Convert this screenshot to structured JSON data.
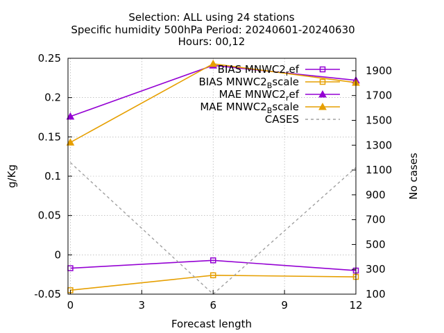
{
  "chart_data": {
    "type": "line",
    "title_lines": [
      "Selection: ALL using    24 stations",
      "Specific humidity 500hPa   Period: 20240601-20240630",
      "Hours: 00,12"
    ],
    "xlabel": "Forecast length",
    "ylabel": "g/Kg",
    "y2label": "No cases",
    "x": [
      0,
      6,
      12
    ],
    "xlim": [
      -0.1,
      12
    ],
    "ylim": [
      -0.05,
      0.25
    ],
    "y2lim": [
      100,
      2000
    ],
    "xticks": [
      "0",
      "3",
      "6",
      "9",
      "12"
    ],
    "yticks": [
      "-0.05",
      "0",
      "0.05",
      "0.1",
      "0.15",
      "0.2",
      "0.25"
    ],
    "y2ticks": [
      "100",
      "300",
      "500",
      "700",
      "900",
      "1100",
      "1300",
      "1500",
      "1700",
      "1900"
    ],
    "grid": true,
    "legend_position": "top-right",
    "series": [
      {
        "name": "BIAS MNWC2_ref",
        "legend_main": "BIAS MNWC2",
        "legend_sub": "r",
        "legend_tail": "ef",
        "axis": "y",
        "marker": "square",
        "color": "#9400d3",
        "values": [
          -0.017,
          -0.007,
          -0.02
        ]
      },
      {
        "name": "BIAS MNWC2_Bscale",
        "legend_main": "BIAS MNWC2",
        "legend_sub": "B",
        "legend_tail": "scale",
        "axis": "y",
        "marker": "square",
        "color": "#e69f00",
        "values": [
          -0.045,
          -0.026,
          -0.028
        ]
      },
      {
        "name": "MAE MNWC2_ref",
        "legend_main": "MAE MNWC2",
        "legend_sub": "r",
        "legend_tail": "ef",
        "axis": "y",
        "marker": "triangle",
        "color": "#9400d3",
        "values": [
          0.176,
          0.241,
          0.222
        ]
      },
      {
        "name": "MAE MNWC2_Bscale",
        "legend_main": "MAE MNWC2",
        "legend_sub": "B",
        "legend_tail": "scale",
        "axis": "y",
        "marker": "triangle",
        "color": "#e69f00",
        "values": [
          0.143,
          0.243,
          0.219
        ]
      },
      {
        "name": "CASES",
        "legend_main": "CASES",
        "legend_sub": "",
        "legend_tail": "",
        "axis": "y2",
        "marker": "none",
        "color": "#a0a0a0",
        "dashed": true,
        "values": [
          1160,
          100,
          1120
        ]
      }
    ]
  }
}
